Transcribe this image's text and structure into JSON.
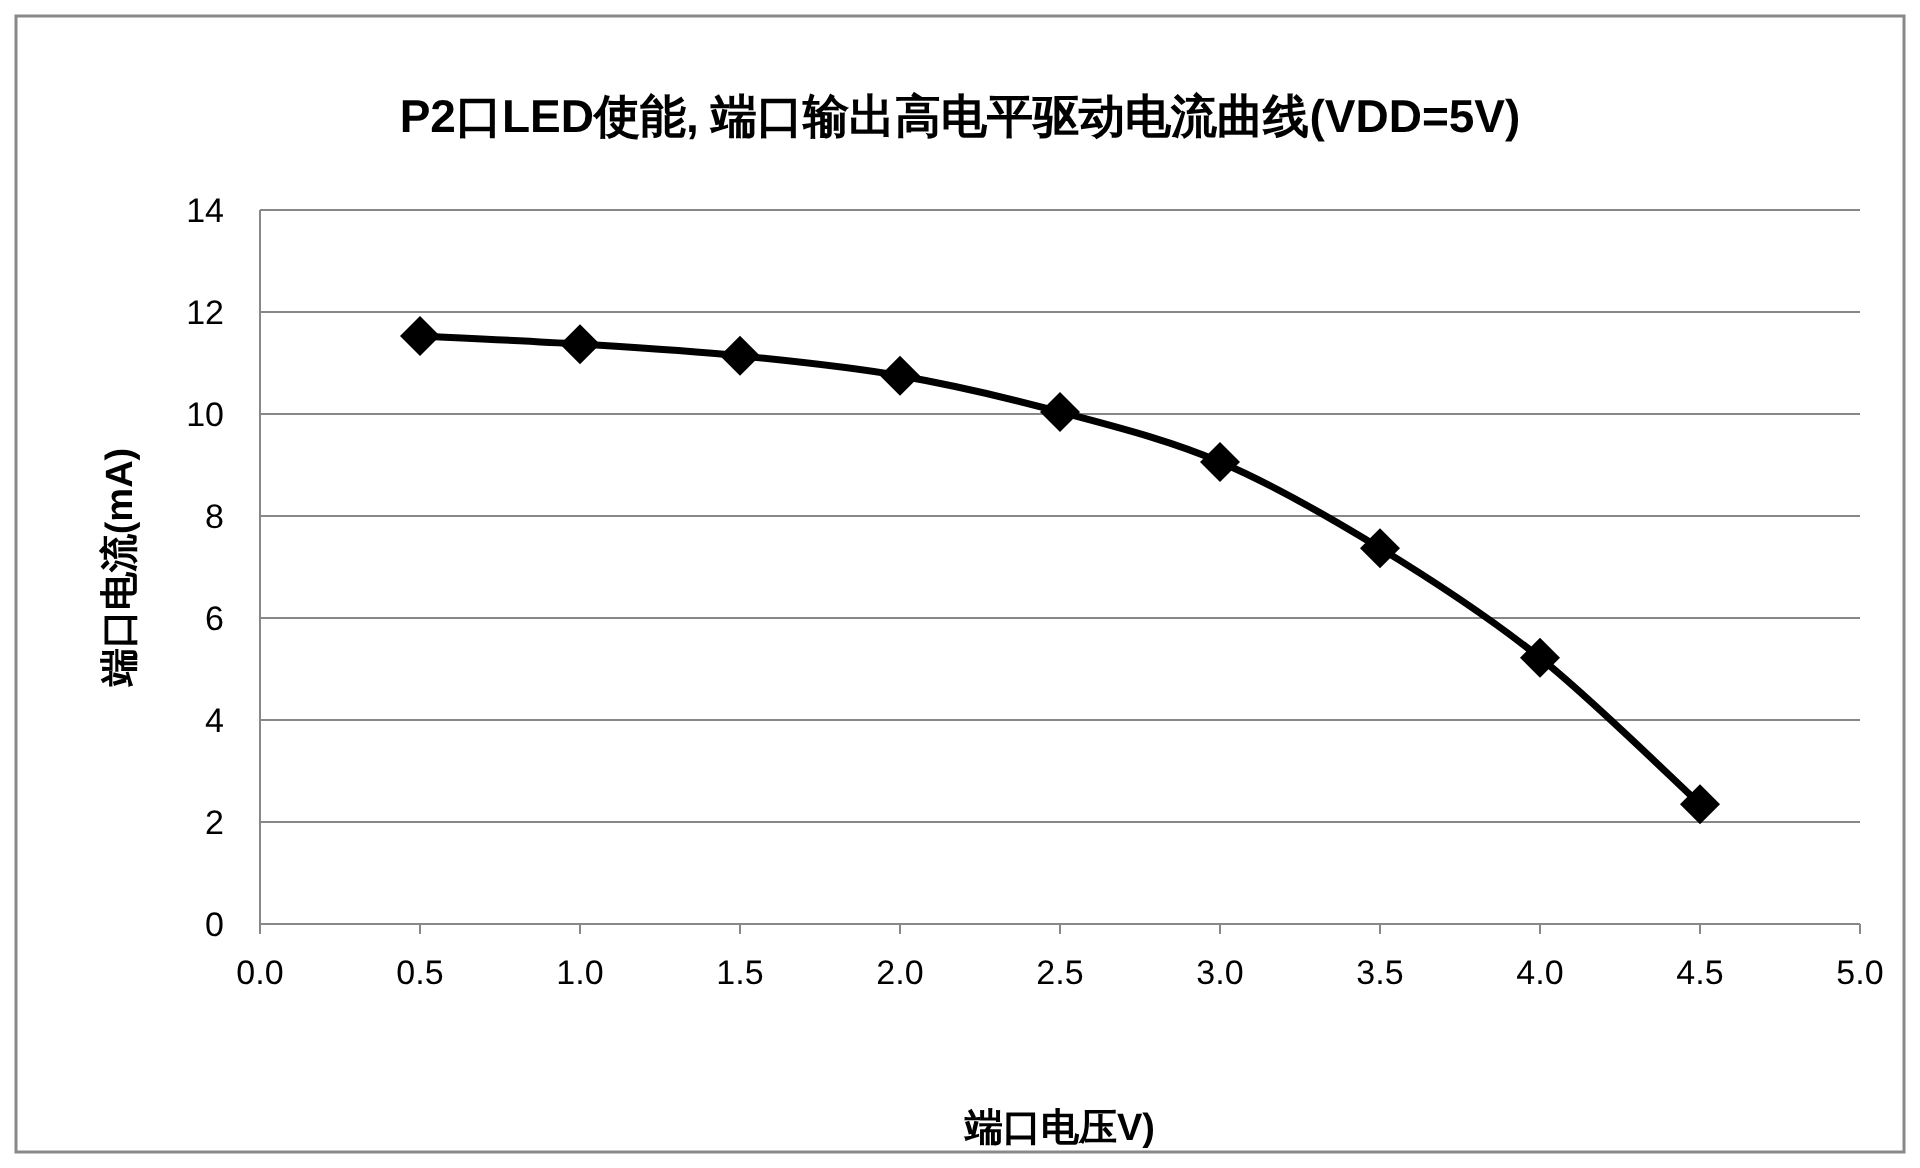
{
  "chart_data": {
    "type": "line",
    "title": "P2口LED使能, 端口输出高电平驱动电流曲线(VDD=5V)",
    "xlabel": "端口电压V)",
    "ylabel": "端口电流(mA)",
    "x": [
      0.5,
      1.0,
      1.5,
      2.0,
      2.5,
      3.0,
      3.5,
      4.0,
      4.5
    ],
    "series": [
      {
        "color": "#000000",
        "values": [
          11.53,
          11.37,
          11.14,
          10.75,
          10.04,
          9.06,
          7.37,
          5.22,
          2.35
        ]
      }
    ],
    "xlim": [
      0,
      5
    ],
    "xticks": [
      {
        "value": 0,
        "label": "0.0"
      },
      {
        "value": 0.5,
        "label": "0.5"
      },
      {
        "value": 1,
        "label": "1.0"
      },
      {
        "value": 1.5,
        "label": "1.5"
      },
      {
        "value": 2,
        "label": "2.0"
      },
      {
        "value": 2.5,
        "label": "2.5"
      },
      {
        "value": 3,
        "label": "3.0"
      },
      {
        "value": 3.5,
        "label": "3.5"
      },
      {
        "value": 4,
        "label": "4.0"
      },
      {
        "value": 4.5,
        "label": "4.5"
      },
      {
        "value": 5,
        "label": "5.0"
      }
    ],
    "ylim": [
      0,
      14
    ],
    "yticks": [
      0,
      2,
      4,
      6,
      8,
      10,
      12,
      14
    ],
    "grid": "y",
    "marker": "diamond",
    "line_style": "solid"
  }
}
